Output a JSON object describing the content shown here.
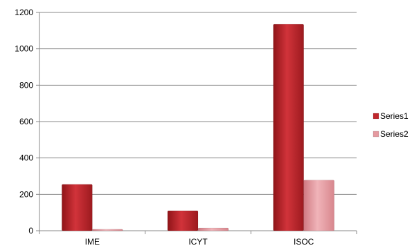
{
  "chart_data": {
    "type": "bar",
    "title": "",
    "xlabel": "",
    "ylabel": "",
    "categories": [
      "IME",
      "ICYT",
      "ISOC"
    ],
    "series": [
      {
        "name": "Series1",
        "values": [
          255,
          110,
          1135
        ],
        "color": "#c0272d"
      },
      {
        "name": "Series2",
        "values": [
          8,
          15,
          278
        ],
        "color": "#e59aa0"
      }
    ],
    "ylim": [
      0,
      1200
    ],
    "yticks": [
      0,
      200,
      400,
      600,
      800,
      1000,
      1200
    ],
    "grid": true,
    "legend_position": "right"
  }
}
